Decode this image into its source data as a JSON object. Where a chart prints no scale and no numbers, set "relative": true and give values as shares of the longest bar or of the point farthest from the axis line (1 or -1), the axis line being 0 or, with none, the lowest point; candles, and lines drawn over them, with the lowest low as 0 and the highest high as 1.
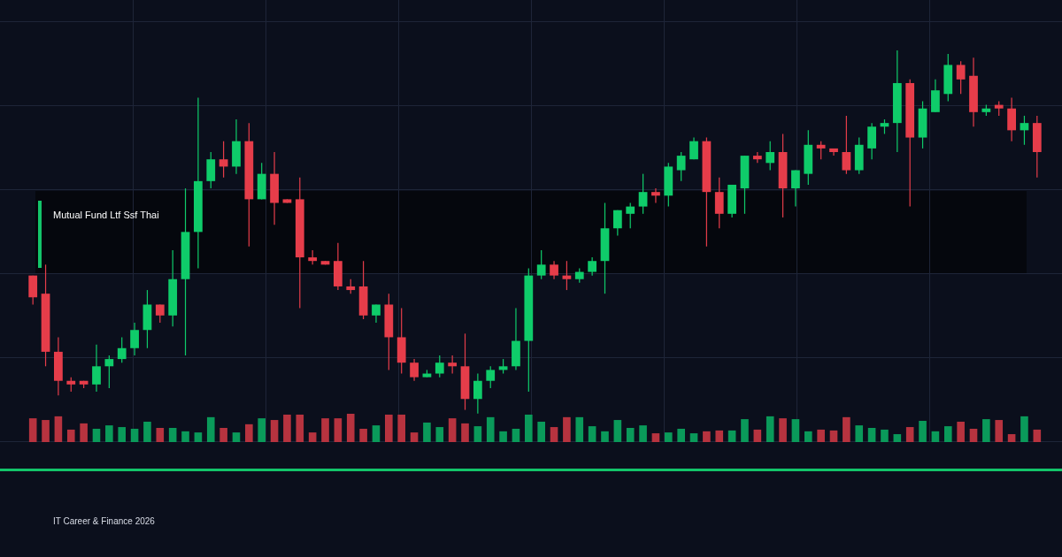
{
  "chart_data": [
    {
      "type": "candlestick",
      "title": "Mutual Fund Ltf Ssf Thai",
      "annotations": [
        "IT Career & Finance 2026"
      ],
      "relative": true,
      "grid": true,
      "categories": [
        null,
        null,
        null,
        null,
        null,
        null,
        null,
        null,
        null,
        null,
        null,
        null,
        null,
        null,
        null,
        null,
        null,
        null,
        null,
        null,
        null,
        null,
        null,
        null,
        null,
        null,
        null,
        null,
        null,
        null,
        null,
        null,
        null,
        null,
        null,
        null,
        null,
        null,
        null,
        null,
        null,
        null,
        null,
        null,
        null,
        null,
        null,
        null,
        null,
        null,
        null,
        null,
        null,
        null,
        null,
        null,
        null,
        null,
        null,
        null,
        null,
        null,
        null,
        null,
        null,
        null,
        null,
        null,
        null,
        null,
        null,
        null,
        null,
        null,
        null,
        null,
        null,
        null,
        null,
        null
      ],
      "ohlc": [
        [
          0.38,
          0.38,
          0.3,
          0.32
        ],
        [
          0.33,
          0.41,
          0.13,
          0.17
        ],
        [
          0.17,
          0.21,
          0.05,
          0.09
        ],
        [
          0.09,
          0.1,
          0.06,
          0.08
        ],
        [
          0.09,
          0.09,
          0.07,
          0.08
        ],
        [
          0.08,
          0.19,
          0.06,
          0.13
        ],
        [
          0.13,
          0.16,
          0.07,
          0.15
        ],
        [
          0.15,
          0.21,
          0.14,
          0.18
        ],
        [
          0.18,
          0.25,
          0.16,
          0.23
        ],
        [
          0.23,
          0.34,
          0.18,
          0.3
        ],
        [
          0.3,
          0.3,
          0.25,
          0.27
        ],
        [
          0.27,
          0.45,
          0.24,
          0.37
        ],
        [
          0.37,
          0.62,
          0.16,
          0.5
        ],
        [
          0.5,
          0.87,
          0.4,
          0.64
        ],
        [
          0.64,
          0.72,
          0.62,
          0.7
        ],
        [
          0.7,
          0.75,
          0.65,
          0.68
        ],
        [
          0.68,
          0.81,
          0.66,
          0.75
        ],
        [
          0.75,
          0.8,
          0.46,
          0.59
        ],
        [
          0.59,
          0.69,
          0.59,
          0.66
        ],
        [
          0.66,
          0.72,
          0.52,
          0.58
        ],
        [
          0.59,
          0.59,
          0.58,
          0.58
        ],
        [
          0.59,
          0.65,
          0.29,
          0.43
        ],
        [
          0.43,
          0.45,
          0.41,
          0.42
        ],
        [
          0.42,
          0.42,
          0.41,
          0.41
        ],
        [
          0.42,
          0.47,
          0.34,
          0.35
        ],
        [
          0.35,
          0.37,
          0.33,
          0.34
        ],
        [
          0.35,
          0.42,
          0.26,
          0.27
        ],
        [
          0.27,
          0.3,
          0.25,
          0.3
        ],
        [
          0.3,
          0.33,
          0.12,
          0.21
        ],
        [
          0.21,
          0.29,
          0.11,
          0.14
        ],
        [
          0.14,
          0.15,
          0.09,
          0.1
        ],
        [
          0.1,
          0.12,
          0.1,
          0.11
        ],
        [
          0.11,
          0.16,
          0.1,
          0.14
        ],
        [
          0.14,
          0.16,
          0.11,
          0.13
        ],
        [
          0.13,
          0.22,
          0.01,
          0.04
        ],
        [
          0.04,
          0.11,
          0,
          0.09
        ],
        [
          0.09,
          0.13,
          0.07,
          0.12
        ],
        [
          0.12,
          0.15,
          0.11,
          0.13
        ],
        [
          0.13,
          0.29,
          0.12,
          0.2
        ],
        [
          0.2,
          0.4,
          0.06,
          0.38
        ],
        [
          0.38,
          0.45,
          0.37,
          0.41
        ],
        [
          0.41,
          0.42,
          0.37,
          0.38
        ],
        [
          0.38,
          0.42,
          0.34,
          0.37
        ],
        [
          0.37,
          0.4,
          0.36,
          0.39
        ],
        [
          0.39,
          0.43,
          0.38,
          0.42
        ],
        [
          0.42,
          0.58,
          0.33,
          0.51
        ],
        [
          0.51,
          0.56,
          0.49,
          0.56
        ],
        [
          0.55,
          0.58,
          0.51,
          0.57
        ],
        [
          0.57,
          0.66,
          0.55,
          0.61
        ],
        [
          0.61,
          0.62,
          0.58,
          0.6
        ],
        [
          0.6,
          0.69,
          0.57,
          0.68
        ],
        [
          0.67,
          0.72,
          0.64,
          0.71
        ],
        [
          0.7,
          0.76,
          0.7,
          0.75
        ],
        [
          0.75,
          0.76,
          0.46,
          0.61
        ],
        [
          0.61,
          0.65,
          0.51,
          0.55
        ],
        [
          0.55,
          0.63,
          0.54,
          0.63
        ],
        [
          0.62,
          0.71,
          0.55,
          0.71
        ],
        [
          0.71,
          0.72,
          0.69,
          0.7
        ],
        [
          0.69,
          0.75,
          0.67,
          0.72
        ],
        [
          0.72,
          0.77,
          0.54,
          0.62
        ],
        [
          0.62,
          0.67,
          0.57,
          0.67
        ],
        [
          0.66,
          0.78,
          0.63,
          0.74
        ],
        [
          0.74,
          0.75,
          0.7,
          0.73
        ],
        [
          0.73,
          0.73,
          0.71,
          0.72
        ],
        [
          0.72,
          0.82,
          0.66,
          0.67
        ],
        [
          0.67,
          0.76,
          0.66,
          0.74
        ],
        [
          0.73,
          0.8,
          0.7,
          0.79
        ],
        [
          0.79,
          0.81,
          0.77,
          0.8
        ],
        [
          0.8,
          1,
          0.72,
          0.91
        ],
        [
          0.91,
          0.92,
          0.57,
          0.76
        ],
        [
          0.76,
          0.86,
          0.73,
          0.84
        ],
        [
          0.83,
          0.92,
          0.83,
          0.89
        ],
        [
          0.88,
          0.99,
          0.86,
          0.96
        ],
        [
          0.96,
          0.97,
          0.88,
          0.92
        ],
        [
          0.93,
          0.98,
          0.79,
          0.83
        ],
        [
          0.83,
          0.85,
          0.82,
          0.84
        ],
        [
          0.85,
          0.86,
          0.82,
          0.84
        ],
        [
          0.84,
          0.87,
          0.75,
          0.78
        ],
        [
          0.78,
          0.82,
          0.74,
          0.8
        ],
        [
          0.8,
          0.82,
          0.65,
          0.72
        ]
      ],
      "colors": [
        "#e63d4a",
        "#e63d4a",
        "#e63d4a",
        "#e63d4a",
        "#e63d4a",
        "#0fcc6a",
        "#0fcc6a",
        "#0fcc6a",
        "#0fcc6a",
        "#0fcc6a",
        "#e63d4a",
        "#0fcc6a",
        "#0fcc6a",
        "#0fcc6a",
        "#0fcc6a",
        "#e63d4a",
        "#0fcc6a",
        "#e63d4a",
        "#0fcc6a",
        "#e63d4a",
        "#e63d4a",
        "#e63d4a",
        "#e63d4a",
        "#e63d4a",
        "#e63d4a",
        "#e63d4a",
        "#e63d4a",
        "#0fcc6a",
        "#e63d4a",
        "#e63d4a",
        "#e63d4a",
        "#0fcc6a",
        "#0fcc6a",
        "#e63d4a",
        "#e63d4a",
        "#0fcc6a",
        "#0fcc6a",
        "#0fcc6a",
        "#0fcc6a",
        "#0fcc6a",
        "#0fcc6a",
        "#e63d4a",
        "#e63d4a",
        "#0fcc6a",
        "#0fcc6a",
        "#0fcc6a",
        "#0fcc6a",
        "#0fcc6a",
        "#0fcc6a",
        "#e63d4a",
        "#0fcc6a",
        "#0fcc6a",
        "#0fcc6a",
        "#e63d4a",
        "#e63d4a",
        "#0fcc6a",
        "#0fcc6a",
        "#e63d4a",
        "#0fcc6a",
        "#e63d4a",
        "#0fcc6a",
        "#0fcc6a",
        "#e63d4a",
        "#e63d4a",
        "#e63d4a",
        "#0fcc6a",
        "#0fcc6a",
        "#0fcc6a",
        "#0fcc6a",
        "#e63d4a",
        "#0fcc6a",
        "#0fcc6a",
        "#0fcc6a",
        "#e63d4a",
        "#e63d4a",
        "#0fcc6a",
        "#e63d4a",
        "#e63d4a",
        "#0fcc6a",
        "#e63d4a"
      ]
    },
    {
      "type": "bar",
      "relative": true,
      "grid": true,
      "categories": [
        null,
        null,
        null,
        null,
        null,
        null,
        null,
        null,
        null,
        null,
        null,
        null,
        null,
        null,
        null,
        null,
        null,
        null,
        null,
        null,
        null,
        null,
        null,
        null,
        null,
        null,
        null,
        null,
        null,
        null,
        null,
        null,
        null,
        null,
        null,
        null,
        null,
        null,
        null,
        null,
        null,
        null,
        null,
        null,
        null,
        null,
        null,
        null,
        null,
        null,
        null,
        null,
        null,
        null,
        null,
        null,
        null,
        null,
        null,
        null,
        null,
        null,
        null,
        null,
        null,
        null,
        null,
        null,
        null,
        null,
        null,
        null,
        null,
        null,
        null,
        null,
        null,
        null,
        null,
        null
      ],
      "values": [
        0.84,
        0.78,
        0.91,
        0.44,
        0.66,
        0.47,
        0.59,
        0.53,
        0.47,
        0.72,
        0.5,
        0.5,
        0.38,
        0.34,
        0.88,
        0.5,
        0.34,
        0.63,
        0.84,
        0.78,
        0.97,
        0.97,
        0.34,
        0.84,
        0.84,
        1,
        0.47,
        0.59,
        0.97,
        0.97,
        0.34,
        0.69,
        0.53,
        0.84,
        0.66,
        0.56,
        0.88,
        0.38,
        0.47,
        0.97,
        0.72,
        0.53,
        0.88,
        0.88,
        0.56,
        0.38,
        0.78,
        0.5,
        0.59,
        0.31,
        0.34,
        0.47,
        0.31,
        0.38,
        0.41,
        0.41,
        0.81,
        0.44,
        0.91,
        0.84,
        0.81,
        0.38,
        0.44,
        0.41,
        0.88,
        0.59,
        0.5,
        0.44,
        0.28,
        0.53,
        0.75,
        0.38,
        0.56,
        0.72,
        0.47,
        0.81,
        0.78,
        0.28,
        0.91,
        0.44
      ],
      "colors": [
        "#b7333f",
        "#b7333f",
        "#b7333f",
        "#b7333f",
        "#b7333f",
        "#0a9a5a",
        "#0a9a5a",
        "#0a9a5a",
        "#0a9a5a",
        "#0a9a5a",
        "#b7333f",
        "#0a9a5a",
        "#0a9a5a",
        "#0a9a5a",
        "#0a9a5a",
        "#b7333f",
        "#0a9a5a",
        "#b7333f",
        "#0a9a5a",
        "#b7333f",
        "#b7333f",
        "#b7333f",
        "#b7333f",
        "#b7333f",
        "#b7333f",
        "#b7333f",
        "#b7333f",
        "#0a9a5a",
        "#b7333f",
        "#b7333f",
        "#b7333f",
        "#0a9a5a",
        "#0a9a5a",
        "#b7333f",
        "#b7333f",
        "#0a9a5a",
        "#0a9a5a",
        "#0a9a5a",
        "#0a9a5a",
        "#0a9a5a",
        "#0a9a5a",
        "#b7333f",
        "#b7333f",
        "#0a9a5a",
        "#0a9a5a",
        "#0a9a5a",
        "#0a9a5a",
        "#0a9a5a",
        "#0a9a5a",
        "#b7333f",
        "#0a9a5a",
        "#0a9a5a",
        "#0a9a5a",
        "#b7333f",
        "#b7333f",
        "#0a9a5a",
        "#0a9a5a",
        "#b7333f",
        "#0a9a5a",
        "#b7333f",
        "#0a9a5a",
        "#0a9a5a",
        "#b7333f",
        "#b7333f",
        "#b7333f",
        "#0a9a5a",
        "#0a9a5a",
        "#0a9a5a",
        "#0a9a5a",
        "#b7333f",
        "#0a9a5a",
        "#0a9a5a",
        "#0a9a5a",
        "#b7333f",
        "#b7333f",
        "#0a9a5a",
        "#b7333f",
        "#b7333f",
        "#0a9a5a",
        "#b7333f"
      ]
    }
  ]
}
